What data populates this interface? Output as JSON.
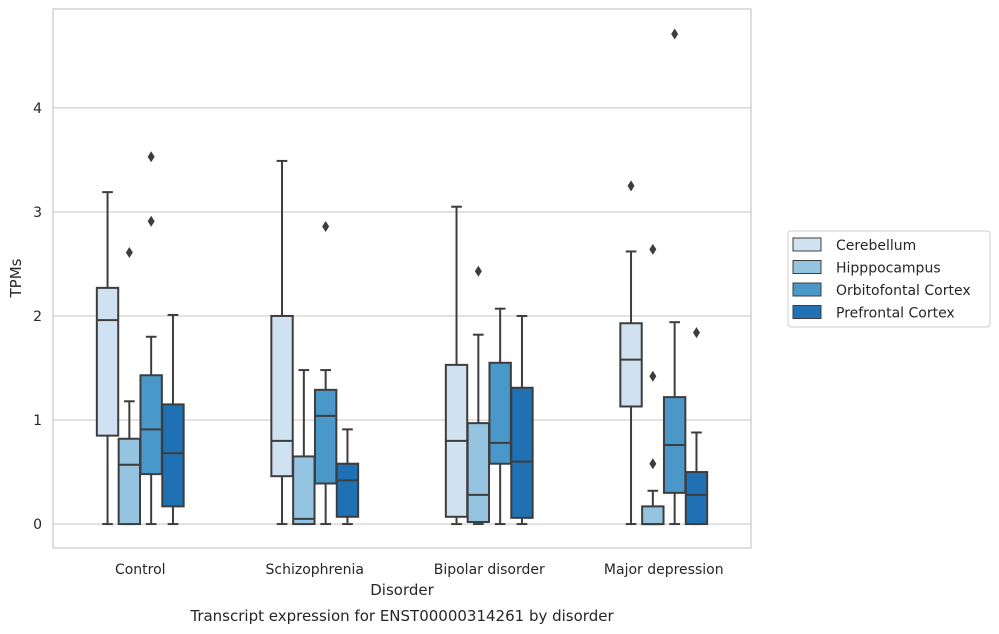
{
  "chart_data": {
    "type": "box",
    "title": "",
    "caption": "Transcript expression for ENST00000314261 by disorder",
    "xlabel": "Disorder",
    "ylabel": "TPMs",
    "ylim": [
      -0.23,
      4.95
    ],
    "yticks": [
      0,
      1,
      2,
      3,
      4
    ],
    "grid": "horizontal",
    "legend_position": "right",
    "categories": [
      "Control",
      "Schizophrenia",
      "Bipolar disorder",
      "Major depression"
    ],
    "series": [
      {
        "name": "Cerebellum",
        "color": "#d0e1f2",
        "boxes": [
          {
            "whisker_low": 0.0,
            "q1": 0.85,
            "median": 1.96,
            "q3": 2.27,
            "whisker_high": 3.19,
            "outliers": []
          },
          {
            "whisker_low": 0.0,
            "q1": 0.46,
            "median": 0.8,
            "q3": 2.0,
            "whisker_high": 3.49,
            "outliers": []
          },
          {
            "whisker_low": 0.0,
            "q1": 0.07,
            "median": 0.8,
            "q3": 1.53,
            "whisker_high": 3.05,
            "outliers": []
          },
          {
            "whisker_low": 0.0,
            "q1": 1.13,
            "median": 1.58,
            "q3": 1.93,
            "whisker_high": 2.62,
            "outliers": [
              3.25
            ]
          }
        ]
      },
      {
        "name": "Hipppocampus",
        "color": "#94c4df",
        "boxes": [
          {
            "whisker_low": 0.0,
            "q1": 0.0,
            "median": 0.57,
            "q3": 0.82,
            "whisker_high": 1.18,
            "outliers": [
              2.61
            ]
          },
          {
            "whisker_low": 0.0,
            "q1": 0.0,
            "median": 0.05,
            "q3": 0.65,
            "whisker_high": 1.48,
            "outliers": []
          },
          {
            "whisker_low": 0.0,
            "q1": 0.02,
            "median": 0.28,
            "q3": 0.97,
            "whisker_high": 1.82,
            "outliers": [
              2.43
            ]
          },
          {
            "whisker_low": 0.0,
            "q1": 0.0,
            "median": 0.0,
            "q3": 0.17,
            "whisker_high": 0.32,
            "outliers": [
              0.58,
              1.42,
              2.64
            ]
          }
        ]
      },
      {
        "name": "Orbitofontal Cortex",
        "color": "#4a98c9",
        "boxes": [
          {
            "whisker_low": 0.0,
            "q1": 0.48,
            "median": 0.91,
            "q3": 1.43,
            "whisker_high": 1.8,
            "outliers": [
              2.91,
              3.53
            ]
          },
          {
            "whisker_low": 0.0,
            "q1": 0.39,
            "median": 1.04,
            "q3": 1.29,
            "whisker_high": 1.48,
            "outliers": [
              2.86
            ]
          },
          {
            "whisker_low": 0.0,
            "q1": 0.58,
            "median": 0.78,
            "q3": 1.55,
            "whisker_high": 2.07,
            "outliers": []
          },
          {
            "whisker_low": 0.0,
            "q1": 0.3,
            "median": 0.76,
            "q3": 1.22,
            "whisker_high": 1.94,
            "outliers": [
              4.71
            ]
          }
        ]
      },
      {
        "name": "Prefrontal Cortex",
        "color": "#2070b4",
        "boxes": [
          {
            "whisker_low": 0.0,
            "q1": 0.17,
            "median": 0.68,
            "q3": 1.15,
            "whisker_high": 2.01,
            "outliers": []
          },
          {
            "whisker_low": 0.0,
            "q1": 0.07,
            "median": 0.42,
            "q3": 0.58,
            "whisker_high": 0.91,
            "outliers": []
          },
          {
            "whisker_low": 0.0,
            "q1": 0.06,
            "median": 0.6,
            "q3": 1.31,
            "whisker_high": 2.0,
            "outliers": []
          },
          {
            "whisker_low": 0.0,
            "q1": 0.0,
            "median": 0.28,
            "q3": 0.5,
            "whisker_high": 0.88,
            "outliers": [
              1.84
            ]
          }
        ]
      }
    ]
  }
}
